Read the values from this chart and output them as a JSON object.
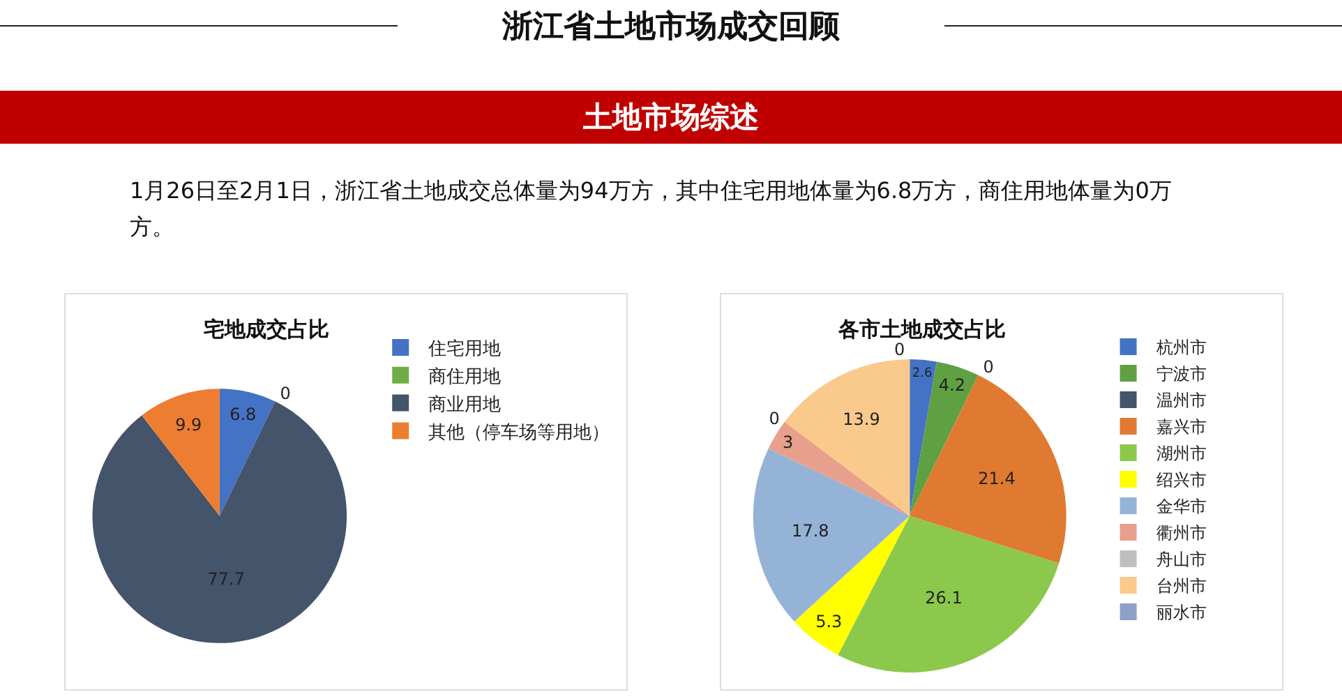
{
  "chart_data": [
    {
      "type": "other",
      "title": "浙江省土地市场成交回顾",
      "subtitle": "土地市场综述",
      "annotations": [
        "1月26日至2月1日，浙江省土地成交总体量为94万方，其中住宅用地体量为6.8万方，商住用地体量为0万方。"
      ]
    },
    {
      "type": "pie",
      "title": "宅地成交占比",
      "categories": [
        "住宅用地",
        "商住用地",
        "商业用地",
        "其他（停车场等用地）"
      ],
      "values": [
        6.8,
        0,
        77.7,
        9.9
      ],
      "colors": [
        "#4472c4",
        "#70ad47",
        "#44546a",
        "#ed7d31"
      ],
      "value_labels": [
        "6.8",
        "0",
        "77.7",
        "9.9"
      ],
      "legend": "right"
    },
    {
      "type": "pie",
      "title": "各市土地成交占比",
      "categories": [
        "杭州市",
        "宁波市",
        "温州市",
        "嘉兴市",
        "湖州市",
        "绍兴市",
        "金华市",
        "衢州市",
        "舟山市",
        "台州市",
        "丽水市"
      ],
      "values": [
        2.6,
        4.2,
        0,
        21.4,
        26.1,
        5.3,
        17.8,
        3,
        0,
        13.9,
        0
      ],
      "colors": [
        "#4472c4",
        "#5fa043",
        "#44546a",
        "#e07a30",
        "#8cc84b",
        "#ffff00",
        "#95b3d7",
        "#e6a08c",
        "#bfbfbf",
        "#fac98c",
        "#8ea0c8"
      ],
      "value_labels": [
        "2.6",
        "4.2",
        "0",
        "21.4",
        "26.1",
        "5.3",
        "17.8",
        "3",
        "0",
        "13.9",
        "0"
      ],
      "legend": "right"
    }
  ]
}
